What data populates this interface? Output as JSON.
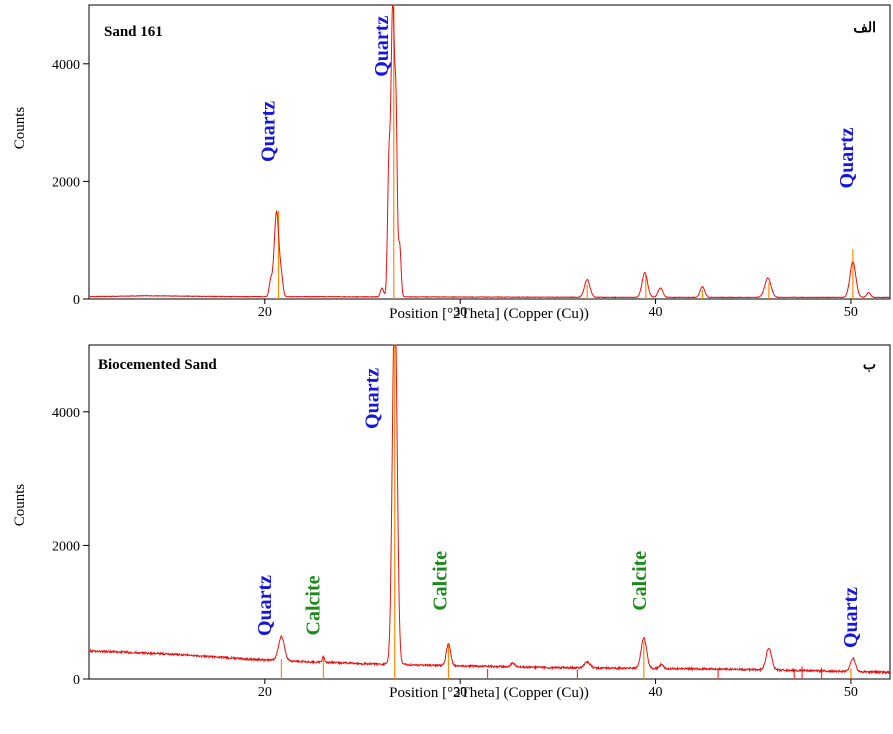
{
  "chart_data": [
    {
      "type": "line",
      "title": "Sand 161",
      "corner_label": "الف",
      "xlabel": "Position [°2Theta] (Copper (Cu))",
      "ylabel": "Counts",
      "xlim": [
        11,
        52
      ],
      "ylim": [
        0,
        5000
      ],
      "xticks": [
        20,
        30,
        40,
        50
      ],
      "yticks": [
        0,
        2000,
        4000
      ],
      "grid": false,
      "baseline": [
        [
          11,
          40
        ],
        [
          14,
          55
        ],
        [
          18,
          42
        ],
        [
          20,
          40
        ],
        [
          24,
          38
        ],
        [
          28,
          36
        ],
        [
          32,
          32
        ],
        [
          36,
          30
        ],
        [
          40,
          28
        ],
        [
          44,
          28
        ],
        [
          48,
          28
        ],
        [
          52,
          28
        ]
      ],
      "peaks": [
        {
          "x": 20.3,
          "y": 260,
          "w": 0.08
        },
        {
          "x": 20.6,
          "y": 1450,
          "w": 0.12
        },
        {
          "x": 20.85,
          "y": 300,
          "w": 0.08
        },
        {
          "x": 26.0,
          "y": 150,
          "w": 0.08
        },
        {
          "x": 26.35,
          "y": 2100,
          "w": 0.07
        },
        {
          "x": 26.55,
          "y": 5000,
          "w": 0.09
        },
        {
          "x": 26.72,
          "y": 2600,
          "w": 0.06
        },
        {
          "x": 26.9,
          "y": 900,
          "w": 0.07
        },
        {
          "x": 36.5,
          "y": 300,
          "w": 0.14
        },
        {
          "x": 39.45,
          "y": 420,
          "w": 0.14
        },
        {
          "x": 40.25,
          "y": 160,
          "w": 0.12
        },
        {
          "x": 42.4,
          "y": 180,
          "w": 0.12
        },
        {
          "x": 45.75,
          "y": 330,
          "w": 0.16
        },
        {
          "x": 50.1,
          "y": 600,
          "w": 0.15
        },
        {
          "x": 50.9,
          "y": 80,
          "w": 0.1
        }
      ],
      "reference_sticks": [
        {
          "x": 20.7,
          "y": 1500
        },
        {
          "x": 26.6,
          "y": 5000
        },
        {
          "x": 36.5,
          "y": 250
        },
        {
          "x": 39.5,
          "y": 400
        },
        {
          "x": 42.4,
          "y": 150
        },
        {
          "x": 45.8,
          "y": 280
        },
        {
          "x": 50.1,
          "y": 850
        }
      ],
      "annotations": [
        {
          "text": "Quartz",
          "x": 20.2,
          "y": 2850,
          "color": "#1515e0"
        },
        {
          "text": "Quartz",
          "x": 26.0,
          "y": 4300,
          "color": "#1515e0"
        },
        {
          "text": "Quartz",
          "x": 49.8,
          "y": 2400,
          "color": "#1515e0"
        }
      ]
    },
    {
      "type": "line",
      "title": "Biocemented Sand",
      "corner_label": "ب",
      "xlabel": "Position [°2Theta] (Copper (Cu))",
      "ylabel": "Counts",
      "xlim": [
        11,
        52
      ],
      "ylim": [
        0,
        5000
      ],
      "xticks": [
        20,
        30,
        40,
        50
      ],
      "yticks": [
        0,
        2000,
        4000
      ],
      "grid": false,
      "baseline": [
        [
          11,
          420
        ],
        [
          13,
          400
        ],
        [
          16,
          360
        ],
        [
          19,
          300
        ],
        [
          22,
          260
        ],
        [
          25,
          230
        ],
        [
          28,
          210
        ],
        [
          31,
          190
        ],
        [
          35,
          170
        ],
        [
          39,
          160
        ],
        [
          43,
          150
        ],
        [
          47,
          130
        ],
        [
          50,
          110
        ],
        [
          52,
          100
        ]
      ],
      "peaks": [
        {
          "x": 20.85,
          "y": 360,
          "w": 0.15
        },
        {
          "x": 23.0,
          "y": 80,
          "w": 0.06
        },
        {
          "x": 26.65,
          "y": 5600,
          "w": 0.12
        },
        {
          "x": 29.4,
          "y": 330,
          "w": 0.11
        },
        {
          "x": 32.7,
          "y": 60,
          "w": 0.1
        },
        {
          "x": 36.5,
          "y": 90,
          "w": 0.14
        },
        {
          "x": 39.4,
          "y": 460,
          "w": 0.14
        },
        {
          "x": 40.3,
          "y": 60,
          "w": 0.1
        },
        {
          "x": 45.8,
          "y": 330,
          "w": 0.14
        },
        {
          "x": 50.1,
          "y": 200,
          "w": 0.13
        }
      ],
      "reference_sticks": [
        {
          "x": 20.85,
          "y": 300,
          "color": "#ff8c00"
        },
        {
          "x": 23.0,
          "y": 320,
          "color": "#ff8c00"
        },
        {
          "x": 26.65,
          "y": 5000,
          "color": "#ff8c00"
        },
        {
          "x": 29.4,
          "y": 500,
          "color": "#ff8c00"
        },
        {
          "x": 31.4,
          "y": 150,
          "color": "#ff3333"
        },
        {
          "x": 36.0,
          "y": 140,
          "color": "#ff3333"
        },
        {
          "x": 39.4,
          "y": 560,
          "color": "#ff8c00"
        },
        {
          "x": 43.2,
          "y": 140,
          "color": "#ff3333"
        },
        {
          "x": 47.1,
          "y": 150,
          "color": "#ff3333"
        },
        {
          "x": 47.5,
          "y": 190,
          "color": "#ff3333"
        },
        {
          "x": 48.5,
          "y": 170,
          "color": "#ff3333"
        },
        {
          "x": 50.0,
          "y": 160,
          "color": "#ff8c00"
        }
      ],
      "annotations": [
        {
          "text": "Quartz",
          "x": 20.0,
          "y": 1100,
          "color": "#1515e0"
        },
        {
          "text": "Calcite",
          "x": 22.5,
          "y": 1100,
          "color": "#1a8a1a"
        },
        {
          "text": "Quartz",
          "x": 25.5,
          "y": 4200,
          "color": "#1515e0"
        },
        {
          "text": "Calcite",
          "x": 29.0,
          "y": 1470,
          "color": "#1a8a1a"
        },
        {
          "text": "Calcite",
          "x": 39.2,
          "y": 1470,
          "color": "#1a8a1a"
        },
        {
          "text": "Quartz",
          "x": 50.0,
          "y": 920,
          "color": "#1515e0"
        }
      ]
    }
  ],
  "colors": {
    "pattern_line": "#e81010",
    "reference_stick": "#ff8c00",
    "frame": "#000000"
  }
}
